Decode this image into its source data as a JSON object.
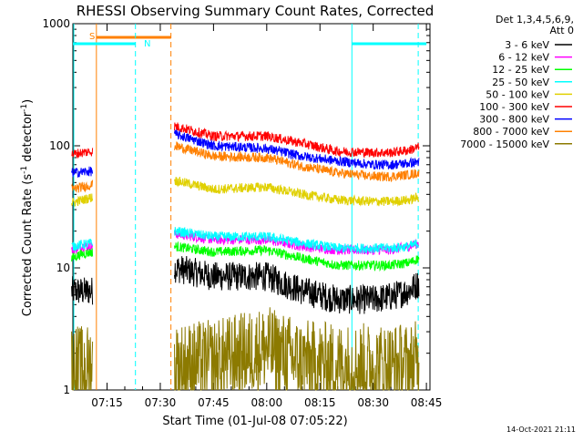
{
  "chart_data": {
    "type": "line",
    "title": "RHESSI Observing Summary Count Rates, Corrected",
    "ylabel_prefix": "Corrected Count Rate (s",
    "ylabel_sup1": "-1",
    "ylabel_mid": " detector",
    "ylabel_sup2": "-1",
    "ylabel_suffix": ")",
    "xlabel": "Start Time (01-Jul-08 07:05:22)",
    "y_scale": "log",
    "ylim": [
      1,
      1000
    ],
    "y_ticks": [
      "1",
      "10",
      "100",
      "1000"
    ],
    "x_ticks": [
      "07:15",
      "07:30",
      "07:45",
      "08:00",
      "08:15",
      "08:30",
      "08:45"
    ],
    "legend_header": "Det 1,3,4,5,6,9,",
    "legend_header2": "Att 0",
    "timestamp": "14-Oct-2021 21:11",
    "flags": {
      "s": "S",
      "n": "N"
    },
    "colors": {
      "3 - 6 keV": "#000000",
      "6 - 12 keV": "#ff00ff",
      "12 - 25 keV": "#00ff00",
      "25 - 50 keV": "#00ffff",
      "50 - 100 keV": "#e0d000",
      "100 - 300 keV": "#ff0000",
      "300 - 800 keV": "#0000ff",
      "800 - 7000 keV": "#ff8000",
      "7000 - 15000 keV": "#8c7a00",
      "saa_line": "#ff8000",
      "night_line": "#00ffff"
    },
    "series": [
      {
        "name": "3 - 6 keV",
        "segments": [
          {
            "x": [
              "07:05",
              "07:08",
              "07:11"
            ],
            "y": [
              6.5,
              6.4,
              6.5
            ]
          },
          {
            "x": [
              "07:34",
              "07:45",
              "08:00",
              "08:10",
              "08:20",
              "08:30",
              "08:35",
              "08:40",
              "08:43"
            ],
            "y": [
              10,
              8.5,
              8.5,
              6.5,
              5.5,
              5.5,
              5.8,
              6.5,
              7.5
            ]
          }
        ]
      },
      {
        "name": "6 - 12 keV",
        "segments": [
          {
            "x": [
              "07:05",
              "07:08",
              "07:11"
            ],
            "y": [
              14,
              15,
              15
            ]
          },
          {
            "x": [
              "07:34",
              "07:45",
              "08:00",
              "08:10",
              "08:20",
              "08:30",
              "08:35",
              "08:40",
              "08:43"
            ],
            "y": [
              19,
              17,
              17,
              15,
              14,
              14,
              14,
              15,
              16
            ]
          }
        ]
      },
      {
        "name": "12 - 25 keV",
        "segments": [
          {
            "x": [
              "07:05",
              "07:08",
              "07:11"
            ],
            "y": [
              12,
              13,
              13.5
            ]
          },
          {
            "x": [
              "07:34",
              "07:45",
              "08:00",
              "08:10",
              "08:20",
              "08:30",
              "08:35",
              "08:40",
              "08:43"
            ],
            "y": [
              15,
              13.5,
              14,
              12,
              10.5,
              10.5,
              10.5,
              11,
              12
            ]
          }
        ]
      },
      {
        "name": "25 - 50 keV",
        "segments": [
          {
            "x": [
              "07:05",
              "07:08",
              "07:11"
            ],
            "y": [
              15,
              15.5,
              16
            ]
          },
          {
            "x": [
              "07:34",
              "07:45",
              "08:00",
              "08:10",
              "08:20",
              "08:30",
              "08:35",
              "08:40",
              "08:43"
            ],
            "y": [
              20,
              18,
              18,
              16,
              14.5,
              14.5,
              14.5,
              15,
              16
            ]
          }
        ]
      },
      {
        "name": "50 - 100 keV",
        "segments": [
          {
            "x": [
              "07:05",
              "07:08",
              "07:11"
            ],
            "y": [
              34,
              36,
              38
            ]
          },
          {
            "x": [
              "07:34",
              "07:45",
              "08:00",
              "08:10",
              "08:20",
              "08:30",
              "08:35",
              "08:40",
              "08:43"
            ],
            "y": [
              52,
              44,
              46,
              40,
              36,
              35,
              35,
              36,
              38
            ]
          }
        ]
      },
      {
        "name": "100 - 300 keV",
        "segments": [
          {
            "x": [
              "07:05",
              "07:08",
              "07:11"
            ],
            "y": [
              85,
              88,
              90
            ]
          },
          {
            "x": [
              "07:34",
              "07:45",
              "08:00",
              "08:10",
              "08:20",
              "08:30",
              "08:35",
              "08:40",
              "08:43"
            ],
            "y": [
              145,
              120,
              120,
              105,
              90,
              88,
              88,
              92,
              98
            ]
          }
        ]
      },
      {
        "name": "300 - 800 keV",
        "segments": [
          {
            "x": [
              "07:05",
              "07:08",
              "07:11"
            ],
            "y": [
              60,
              61,
              62
            ]
          },
          {
            "x": [
              "07:34",
              "07:45",
              "08:00",
              "08:10",
              "08:20",
              "08:30",
              "08:35",
              "08:40",
              "08:43"
            ],
            "y": [
              125,
              100,
              95,
              82,
              75,
              70,
              70,
              72,
              74
            ]
          }
        ]
      },
      {
        "name": "800 - 7000 keV",
        "segments": [
          {
            "x": [
              "07:05",
              "07:08",
              "07:11"
            ],
            "y": [
              44,
              46,
              48
            ]
          },
          {
            "x": [
              "07:34",
              "07:45",
              "08:00",
              "08:10",
              "08:20",
              "08:30",
              "08:35",
              "08:40",
              "08:43"
            ],
            "y": [
              100,
              82,
              80,
              68,
              60,
              56,
              56,
              58,
              60
            ]
          }
        ]
      },
      {
        "name": "7000 - 15000 keV",
        "segments": [
          {
            "x": [
              "07:05",
              "07:08",
              "07:11"
            ],
            "y": [
              1.6,
              1.5,
              1.6
            ]
          },
          {
            "x": [
              "07:34",
              "07:45",
              "08:00",
              "08:10",
              "08:20",
              "08:30",
              "08:35",
              "08:40",
              "08:43"
            ],
            "y": [
              1.6,
              1.7,
              2.2,
              1.7,
              1.6,
              1.6,
              1.6,
              1.6,
              1.7
            ]
          }
        ]
      }
    ],
    "saa_interval": [
      "07:12",
      "07:33"
    ],
    "night_intervals": [
      [
        "07:05",
        "07:23"
      ],
      [
        "08:24",
        "08:45"
      ]
    ]
  }
}
